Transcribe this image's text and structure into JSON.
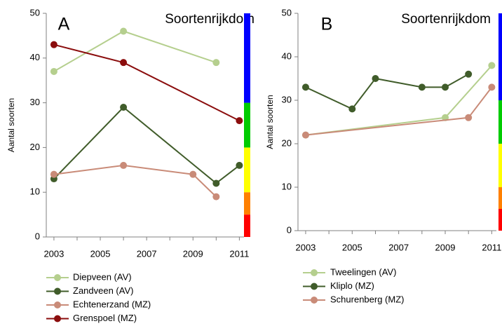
{
  "chart_data": [
    {
      "type": "line",
      "panel_label": "A",
      "title": "Soortenrijkdom",
      "xlabel": "",
      "ylabel": "Aantal soorten",
      "xlim": [
        2002.7,
        2011.2
      ],
      "ylim": [
        0,
        50
      ],
      "x_ticks": [
        "2003",
        "2005",
        "2007",
        "2009",
        "2011"
      ],
      "y_ticks": [
        "0",
        "10",
        "20",
        "30",
        "40",
        "50"
      ],
      "grid": false,
      "legend_position": "bottom",
      "scale_bar": [
        {
          "from": 0,
          "to": 5,
          "color": "#ff0000"
        },
        {
          "from": 5,
          "to": 10,
          "color": "#ff8000"
        },
        {
          "from": 10,
          "to": 20,
          "color": "#ffff00"
        },
        {
          "from": 20,
          "to": 30,
          "color": "#00cc00"
        },
        {
          "from": 30,
          "to": 50,
          "color": "#0000ff"
        }
      ],
      "series": [
        {
          "name": "Diepveen (AV)",
          "color": "#b5cf8e",
          "points": [
            {
              "x": 2003,
              "y": 37,
              "marker": true
            },
            {
              "x": 2005,
              "y": 43,
              "marker": false
            },
            {
              "x": 2006,
              "y": 46,
              "marker": true
            },
            {
              "x": 2010,
              "y": 39,
              "marker": true
            }
          ]
        },
        {
          "name": "Zandveen (AV)",
          "color": "#405c2a",
          "points": [
            {
              "x": 2003,
              "y": 13,
              "marker": true
            },
            {
              "x": 2006,
              "y": 29,
              "marker": true
            },
            {
              "x": 2010,
              "y": 12,
              "marker": true
            },
            {
              "x": 2011,
              "y": 16,
              "marker": true
            }
          ]
        },
        {
          "name": "Echtenerzand (MZ)",
          "color": "#c98b78",
          "points": [
            {
              "x": 2003,
              "y": 14,
              "marker": true
            },
            {
              "x": 2006,
              "y": 16,
              "marker": true
            },
            {
              "x": 2009,
              "y": 14,
              "marker": true
            },
            {
              "x": 2010,
              "y": 9,
              "marker": true
            }
          ]
        },
        {
          "name": "Grenspoel (MZ)",
          "color": "#8b0d0d",
          "points": [
            {
              "x": 2003,
              "y": 43,
              "marker": true
            },
            {
              "x": 2006,
              "y": 39,
              "marker": true
            },
            {
              "x": 2011,
              "y": 26,
              "marker": true
            }
          ]
        }
      ]
    },
    {
      "type": "line",
      "panel_label": "B",
      "title": "Soortenrijkdom",
      "xlabel": "",
      "ylabel": "Aantal soorten",
      "xlim": [
        2002.7,
        2011.2
      ],
      "ylim": [
        0,
        50
      ],
      "x_ticks": [
        "2003",
        "2005",
        "2007",
        "2009",
        "2011"
      ],
      "y_ticks": [
        "0",
        "10",
        "20",
        "30",
        "40",
        "50"
      ],
      "grid": false,
      "legend_position": "bottom",
      "scale_bar": [
        {
          "from": 0,
          "to": 5,
          "color": "#ff0000"
        },
        {
          "from": 5,
          "to": 10,
          "color": "#ff8000"
        },
        {
          "from": 10,
          "to": 20,
          "color": "#ffff00"
        },
        {
          "from": 20,
          "to": 30,
          "color": "#00cc00"
        },
        {
          "from": 30,
          "to": 50,
          "color": "#0000ff"
        }
      ],
      "series": [
        {
          "name": "Tweelingen (AV)",
          "color": "#b5cf8e",
          "points": [
            {
              "x": 2003,
              "y": 22,
              "marker": true
            },
            {
              "x": 2009,
              "y": 26,
              "marker": true
            },
            {
              "x": 2011,
              "y": 38,
              "marker": true
            }
          ]
        },
        {
          "name": "Kliplo (MZ)",
          "color": "#405c2a",
          "points": [
            {
              "x": 2003,
              "y": 33,
              "marker": true
            },
            {
              "x": 2005,
              "y": 28,
              "marker": true
            },
            {
              "x": 2006,
              "y": 35,
              "marker": true
            },
            {
              "x": 2008,
              "y": 33,
              "marker": true
            },
            {
              "x": 2009,
              "y": 33,
              "marker": true
            },
            {
              "x": 2010,
              "y": 36,
              "marker": true
            }
          ]
        },
        {
          "name": "Schurenberg (MZ)",
          "color": "#c98b78",
          "points": [
            {
              "x": 2003,
              "y": 22,
              "marker": true
            },
            {
              "x": 2010,
              "y": 26,
              "marker": true
            },
            {
              "x": 2011,
              "y": 33,
              "marker": true
            }
          ]
        }
      ]
    }
  ]
}
